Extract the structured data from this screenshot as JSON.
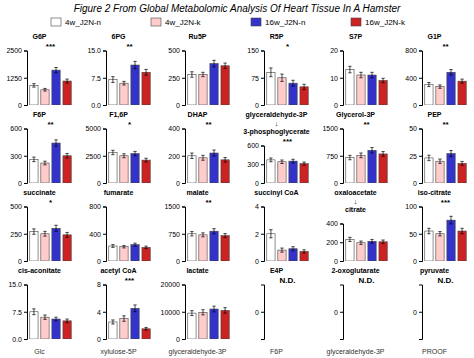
{
  "chart_data": [
    {
      "type": "legend",
      "title": "Figure 2 From Global Metabolomic Analysis Of Heart Tissue In A Hamster",
      "categories": [
        "4w_J2N-n",
        "4w_J2N-k",
        "16w_J2N-n",
        "16w_J2N-k"
      ],
      "colors": [
        "white",
        "#ffcccc",
        "#3333cc",
        "#cc2222"
      ],
      "annotations": [
        "Glc",
        "xylulose-5P",
        "glyceraldehyde-3P",
        "F6P",
        "glyceraldehyde-3P",
        "PROOF"
      ]
    },
    {
      "type": "bar",
      "title": "G6P",
      "values": [
        900,
        700,
        1600,
        1100
      ],
      "errors": [
        80,
        60,
        120,
        90
      ],
      "ylim": [
        0,
        2500
      ],
      "yticks": [
        0,
        1250,
        2500
      ],
      "annotations": [
        "***"
      ]
    },
    {
      "type": "bar",
      "title": "6PG",
      "values": [
        7,
        6,
        11,
        9
      ],
      "errors": [
        0.8,
        0.5,
        1.0,
        0.8
      ],
      "ylim": [
        0,
        15.0
      ],
      "yticks": [
        {
          "value": 0,
          "label": "0.0"
        },
        7.5,
        {
          "value": 15,
          "label": "15.0"
        }
      ],
      "annotations": [
        "**"
      ]
    },
    {
      "type": "bar",
      "title": "Ru5P",
      "values": [
        280,
        280,
        380,
        360
      ],
      "errors": [
        25,
        20,
        30,
        25
      ],
      "ylim": [
        0,
        500
      ],
      "yticks": [
        0,
        250,
        500
      ]
    },
    {
      "type": "bar",
      "title": "R5P",
      "values": [
        90,
        75,
        60,
        50
      ],
      "errors": [
        12,
        10,
        8,
        7
      ],
      "ylim": [
        0,
        150
      ],
      "yticks": [
        0,
        75,
        150
      ],
      "annotations": [
        "*"
      ]
    },
    {
      "type": "bar",
      "title": "S7P",
      "values": [
        13,
        11,
        11,
        9
      ],
      "errors": [
        1.2,
        1.0,
        1.0,
        0.8
      ],
      "ylim": [
        0,
        20
      ],
      "yticks": [
        0,
        10,
        20
      ]
    },
    {
      "type": "bar",
      "title": "G1P",
      "values": [
        300,
        270,
        480,
        350
      ],
      "errors": [
        30,
        25,
        40,
        30
      ],
      "ylim": [
        0,
        800
      ],
      "yticks": [
        0,
        400,
        800
      ],
      "annotations": [
        "**"
      ]
    },
    {
      "type": "bar",
      "title": "F6P",
      "values": [
        260,
        220,
        440,
        300
      ],
      "errors": [
        25,
        20,
        35,
        25
      ],
      "ylim": [
        0,
        600
      ],
      "yticks": [
        0,
        300,
        600
      ],
      "annotations": [
        "**"
      ]
    },
    {
      "type": "bar",
      "title": "F1,6P",
      "values": [
        2800,
        2500,
        2700,
        2100
      ],
      "errors": [
        200,
        180,
        200,
        170
      ],
      "ylim": [
        0,
        5000
      ],
      "yticks": [
        0,
        2500,
        5000
      ],
      "annotations": [
        "*"
      ]
    },
    {
      "type": "bar",
      "title": "DHAP",
      "values": [
        200,
        185,
        220,
        170
      ],
      "errors": [
        20,
        18,
        22,
        17
      ],
      "ylim": [
        0,
        400
      ],
      "yticks": [
        0,
        200,
        400
      ],
      "annotations": [
        "**"
      ]
    },
    {
      "type": "bar",
      "title": [
        "glyceraldehyde-3P",
        "↓",
        "3-phosphoglycerate"
      ],
      "values": [
        370,
        340,
        350,
        310
      ],
      "errors": [
        30,
        28,
        30,
        25
      ],
      "ylim": [
        0,
        600
      ],
      "yticks": [
        0,
        300,
        600
      ],
      "annotations": [
        "***"
      ]
    },
    {
      "type": "bar",
      "title": "Glycerol-3P",
      "values": [
        700,
        760,
        900,
        800
      ],
      "errors": [
        60,
        65,
        75,
        65
      ],
      "ylim": [
        0,
        1500
      ],
      "yticks": [
        0,
        750,
        1500
      ],
      "annotations": [
        "**"
      ]
    },
    {
      "type": "bar",
      "title": "PEP",
      "values": [
        23,
        20,
        27,
        18
      ],
      "errors": [
        2.5,
        2.0,
        2.8,
        1.8
      ],
      "ylim": [
        0,
        50
      ],
      "yticks": [
        0,
        25,
        50
      ],
      "annotations": [
        "**"
      ]
    },
    {
      "type": "bar",
      "title": "succinate",
      "values": [
        270,
        250,
        300,
        240
      ],
      "errors": [
        25,
        22,
        28,
        22
      ],
      "ylim": [
        0,
        500
      ],
      "yticks": [
        0,
        250,
        500
      ],
      "annotations": [
        "*"
      ]
    },
    {
      "type": "bar",
      "title": "fumarate",
      "values": [
        220,
        210,
        240,
        200
      ],
      "errors": [
        20,
        18,
        22,
        18
      ],
      "ylim": [
        0,
        800
      ],
      "yticks": [
        0,
        400,
        800
      ]
    },
    {
      "type": "bar",
      "title": "malate",
      "values": [
        750,
        720,
        820,
        700
      ],
      "errors": [
        60,
        55,
        70,
        55
      ],
      "ylim": [
        0,
        1500
      ],
      "yticks": [
        0,
        750,
        1500
      ],
      "annotations": [
        "**"
      ]
    },
    {
      "type": "bar",
      "title": "succinyl CoA",
      "values": [
        2.0,
        0.8,
        0.9,
        0.7
      ],
      "errors": [
        0.3,
        0.15,
        0.15,
        0.12
      ],
      "ylim": [
        0,
        4
      ],
      "yticks": [
        0,
        2,
        4
      ]
    },
    {
      "type": "bar",
      "title": [
        "oxaloacetate",
        "↓",
        "citrate"
      ],
      "values": [
        230,
        195,
        210,
        205
      ],
      "errors": [
        22,
        18,
        20,
        19
      ],
      "ylim": [
        0,
        400
      ],
      "yticks": [
        0,
        200,
        400
      ]
    },
    {
      "type": "bar",
      "title": "iso-citrate",
      "values": [
        55,
        50,
        75,
        55
      ],
      "errors": [
        5,
        4,
        7,
        5
      ],
      "ylim": [
        0,
        100
      ],
      "yticks": [
        0,
        50,
        100
      ],
      "annotations": [
        "***"
      ]
    },
    {
      "type": "bar",
      "title": "cis-aconitate",
      "values": [
        7.5,
        6.0,
        5.5,
        5.0
      ],
      "errors": [
        0.8,
        0.6,
        0.5,
        0.5
      ],
      "ylim": [
        0,
        15.0
      ],
      "yticks": [
        {
          "value": 0,
          "label": "0.0"
        },
        7.5,
        {
          "value": 15,
          "label": "15.0"
        }
      ]
    },
    {
      "type": "bar",
      "title": "acetyl CoA",
      "values": [
        2.5,
        3.0,
        4.5,
        1.5
      ],
      "errors": [
        0.3,
        0.4,
        0.5,
        0.2
      ],
      "ylim": [
        0,
        8
      ],
      "yticks": [
        0,
        4,
        8
      ],
      "annotations": [
        "***"
      ]
    },
    {
      "type": "bar",
      "title": "lactate",
      "values": [
        9500,
        9800,
        11000,
        10500
      ],
      "errors": [
        900,
        950,
        1050,
        1000
      ],
      "ylim": [
        0,
        20000
      ],
      "yticks": [
        0,
        10000,
        20000
      ]
    },
    {
      "type": "bar",
      "title": "E4P",
      "ylim": [
        0,
        0
      ],
      "yticks": [
        0
      ],
      "annotations": [
        "N.D."
      ]
    },
    {
      "type": "bar",
      "title": "2-oxoglutarate",
      "ylim": [
        0,
        0
      ],
      "yticks": [
        0
      ],
      "annotations": [
        "N.D."
      ]
    },
    {
      "type": "bar",
      "title": "pyruvate",
      "ylim": [
        0,
        0
      ],
      "yticks": [
        0
      ],
      "annotations": [
        "N.D."
      ]
    }
  ]
}
